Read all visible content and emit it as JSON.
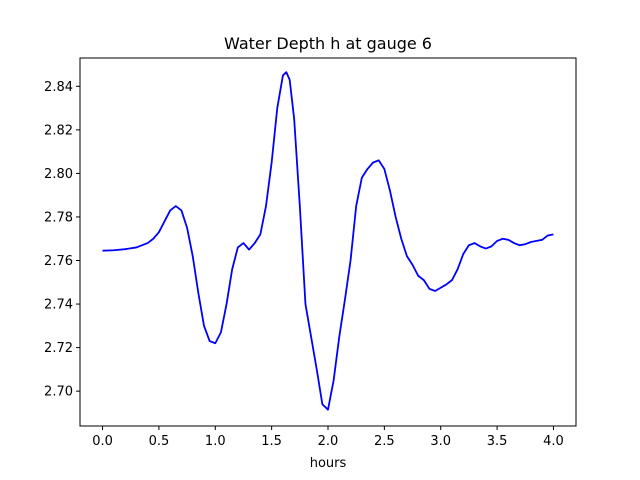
{
  "chart_data": {
    "type": "line",
    "title": "Water Depth h at gauge 6",
    "xlabel": "hours",
    "ylabel": "",
    "xlim": [
      -0.2,
      4.2
    ],
    "ylim": [
      2.684,
      2.853
    ],
    "xticks": [
      0.0,
      0.5,
      1.0,
      1.5,
      2.0,
      2.5,
      3.0,
      3.5,
      4.0
    ],
    "xtick_labels": [
      "0.0",
      "0.5",
      "1.0",
      "1.5",
      "2.0",
      "2.5",
      "3.0",
      "3.5",
      "4.0"
    ],
    "yticks": [
      2.7,
      2.72,
      2.74,
      2.76,
      2.78,
      2.8,
      2.82,
      2.84
    ],
    "ytick_labels": [
      "2.70",
      "2.72",
      "2.74",
      "2.76",
      "2.78",
      "2.80",
      "2.82",
      "2.84"
    ],
    "grid": false,
    "legend": "none",
    "series": [
      {
        "color": "#0000ff",
        "x": [
          0.0,
          0.1,
          0.2,
          0.3,
          0.4,
          0.45,
          0.5,
          0.55,
          0.6,
          0.65,
          0.7,
          0.75,
          0.8,
          0.85,
          0.9,
          0.95,
          1.0,
          1.05,
          1.1,
          1.15,
          1.2,
          1.25,
          1.3,
          1.35,
          1.4,
          1.45,
          1.5,
          1.55,
          1.6,
          1.63,
          1.66,
          1.7,
          1.75,
          1.8,
          1.85,
          1.9,
          1.95,
          2.0,
          2.05,
          2.1,
          2.15,
          2.2,
          2.25,
          2.3,
          2.35,
          2.4,
          2.45,
          2.5,
          2.55,
          2.6,
          2.65,
          2.7,
          2.75,
          2.8,
          2.85,
          2.9,
          2.95,
          3.0,
          3.05,
          3.1,
          3.15,
          3.2,
          3.25,
          3.3,
          3.35,
          3.4,
          3.45,
          3.5,
          3.55,
          3.6,
          3.65,
          3.7,
          3.75,
          3.8,
          3.85,
          3.9,
          3.95,
          4.0
        ],
        "y": [
          2.7645,
          2.7647,
          2.7652,
          2.766,
          2.768,
          2.77,
          2.773,
          2.778,
          2.783,
          2.785,
          2.783,
          2.775,
          2.762,
          2.745,
          2.73,
          2.723,
          2.722,
          2.727,
          2.74,
          2.756,
          2.766,
          2.768,
          2.765,
          2.768,
          2.772,
          2.785,
          2.805,
          2.83,
          2.845,
          2.8465,
          2.843,
          2.825,
          2.785,
          2.74,
          2.725,
          2.71,
          2.694,
          2.6915,
          2.705,
          2.725,
          2.742,
          2.76,
          2.785,
          2.798,
          2.802,
          2.805,
          2.806,
          2.802,
          2.792,
          2.78,
          2.77,
          2.762,
          2.758,
          2.753,
          2.751,
          2.747,
          2.746,
          2.7475,
          2.749,
          2.751,
          2.756,
          2.763,
          2.767,
          2.768,
          2.7665,
          2.7655,
          2.7665,
          2.769,
          2.77,
          2.7695,
          2.768,
          2.767,
          2.7675,
          2.7685,
          2.769,
          2.7695,
          2.7715,
          2.772
        ]
      }
    ]
  }
}
